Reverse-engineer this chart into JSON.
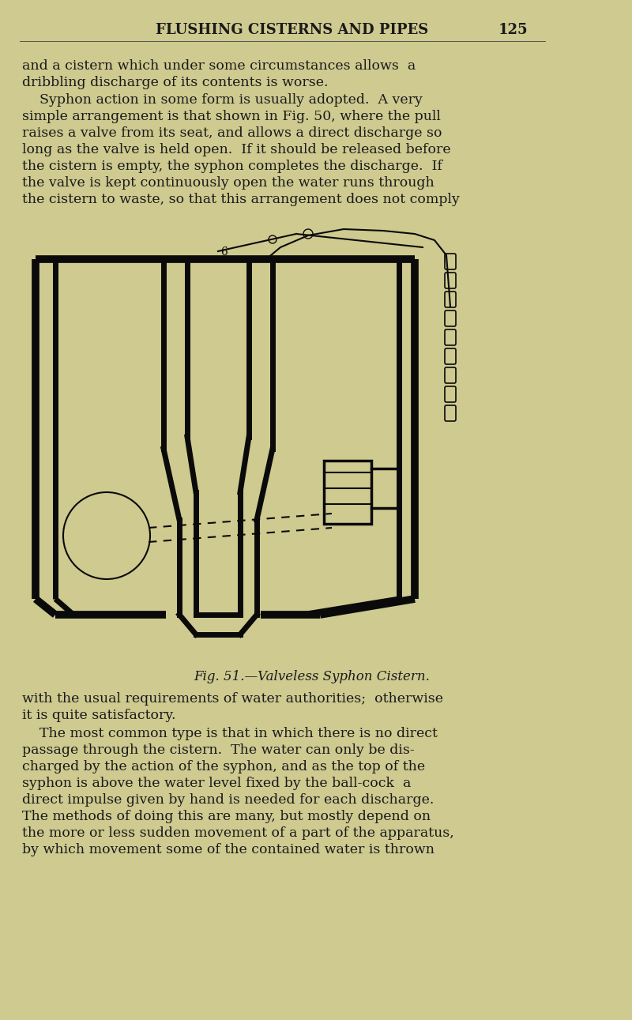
{
  "bg_color": "#ceca90",
  "text_color": "#1a1a1a",
  "header_text": "FLUSHING CISTERNS AND PIPES",
  "page_number": "125",
  "fig_caption": "Fig. 51.—Valveless Syphon Cistern.",
  "lines_p1": [
    "and a cistern which under some circumstances allows  a",
    "dribbling discharge of its contents is worse."
  ],
  "lines_p2": [
    "    Syphon action in some form is usually adopted.  A very",
    "simple arrangement is that shown in Fig. 50, where the pull",
    "raises a valve from its seat, and allows a direct discharge so",
    "long as the valve is held open.  If it should be released before",
    "the cistern is empty, the syphon completes the discharge.  If",
    "the valve is kept continuously open the water runs through",
    "the cistern to waste, so that this arrangement does not comply"
  ],
  "lines_p3": [
    "with the usual requirements of water authorities;  otherwise",
    "it is quite satisfactory."
  ],
  "lines_p4": [
    "    The most common type is that in which there is no direct",
    "passage through the cistern.  The water can only be dis-",
    "charged by the action of the syphon, and as the top of the",
    "syphon is above the water level fixed by the ball-cock  a",
    "direct impulse given by hand is needed for each discharge.",
    "The methods of doing this are many, but mostly depend on",
    "the more or less sudden movement of a part of the apparatus,",
    "by which movement some of the contained water is thrown"
  ]
}
